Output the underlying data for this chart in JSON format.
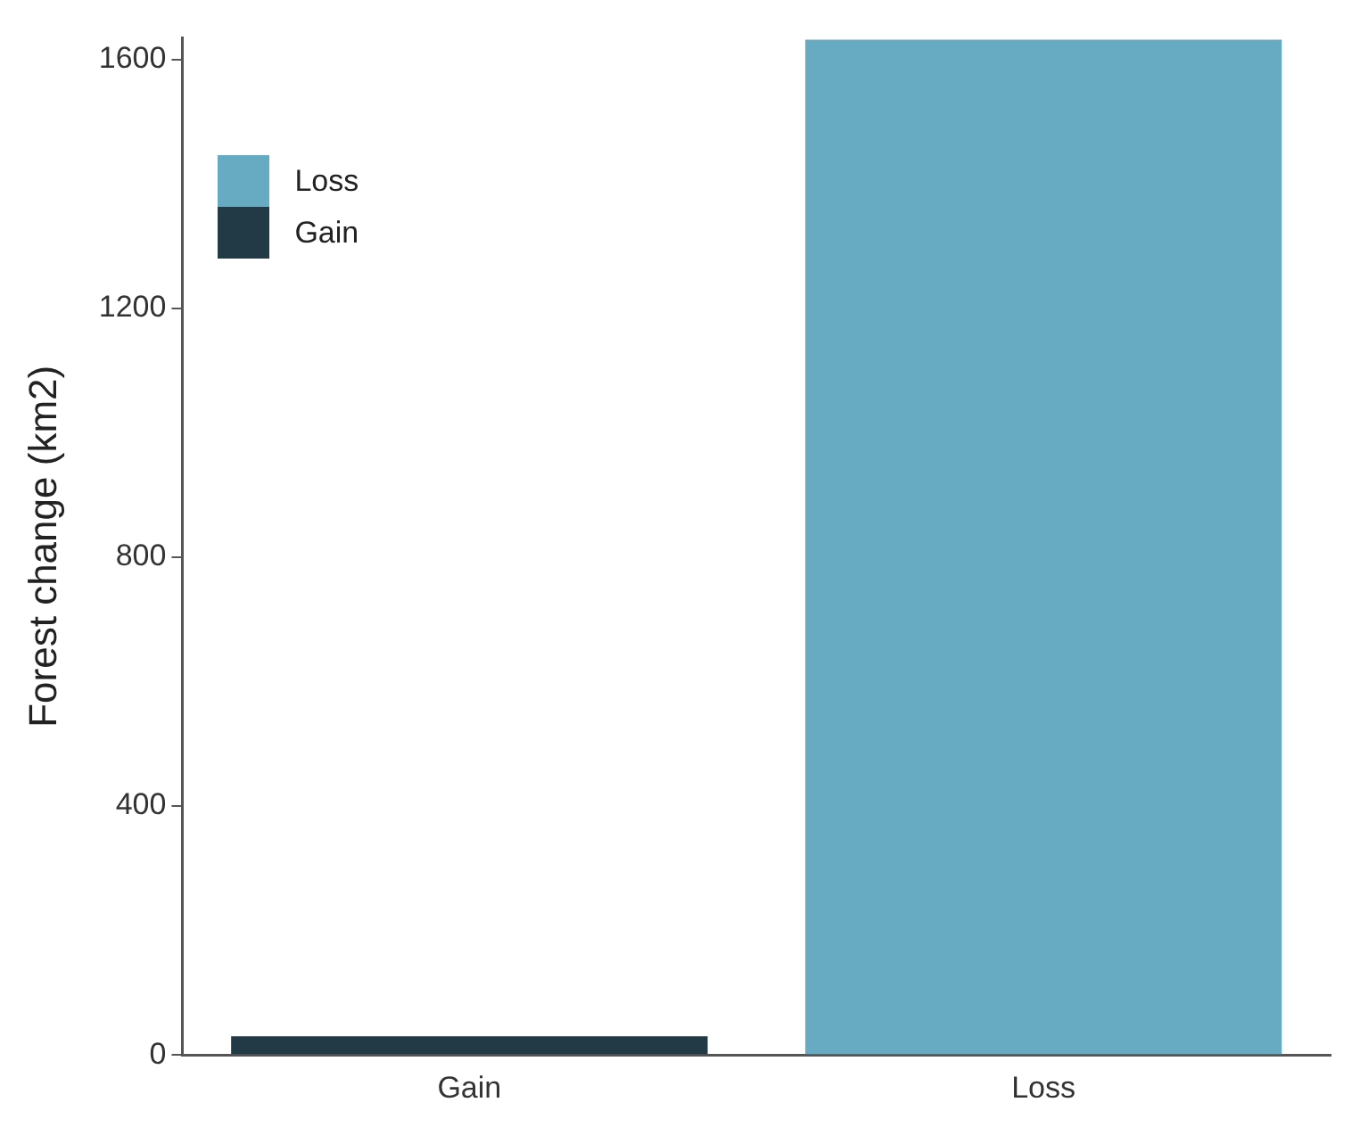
{
  "chart_data": {
    "type": "bar",
    "ylabel": "Forest change (km2)",
    "categories": [
      "Gain",
      "Loss"
    ],
    "series": [
      {
        "name": "Loss",
        "color": "#67abc3",
        "values": [
          null,
          1632
        ]
      },
      {
        "name": "Gain",
        "color": "#213a46",
        "values": [
          30,
          null
        ]
      }
    ],
    "ylim": [
      0,
      1635
    ],
    "yticks": [
      0,
      400,
      800,
      1200,
      1600
    ],
    "grid": false,
    "legend": "top left"
  }
}
